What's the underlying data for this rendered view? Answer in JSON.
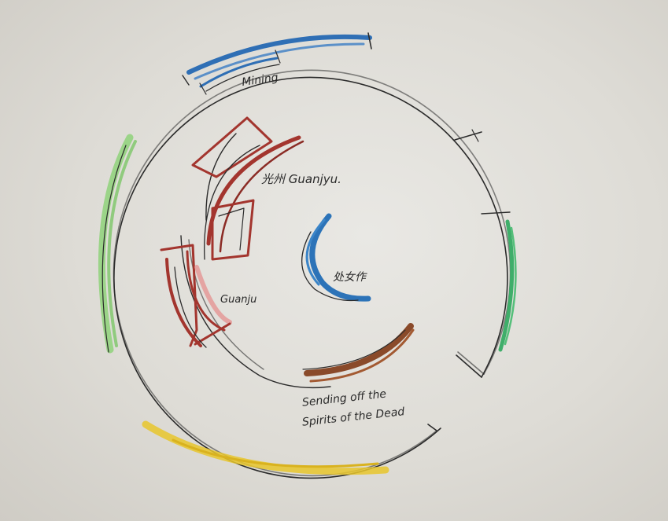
{
  "colors": {
    "paper": "#e2e0db",
    "outline": "#2b2b2b",
    "mining": "#2f6fb5",
    "green": "#8fd27a",
    "green_dark": "#3fae6a",
    "red": "#a3352e",
    "brown": "#8a4a2a",
    "blue": "#2c73b8",
    "yellow": "#e8c52c",
    "pink": "#e58a8a"
  },
  "labels": {
    "mining": "Mining",
    "guanju_cn": "光州 Guanjyu.",
    "guanju": "Guanju",
    "center_cn": "处女作",
    "sending_line1": "Sending off the",
    "sending_line2": "Spirits of the Dead"
  }
}
